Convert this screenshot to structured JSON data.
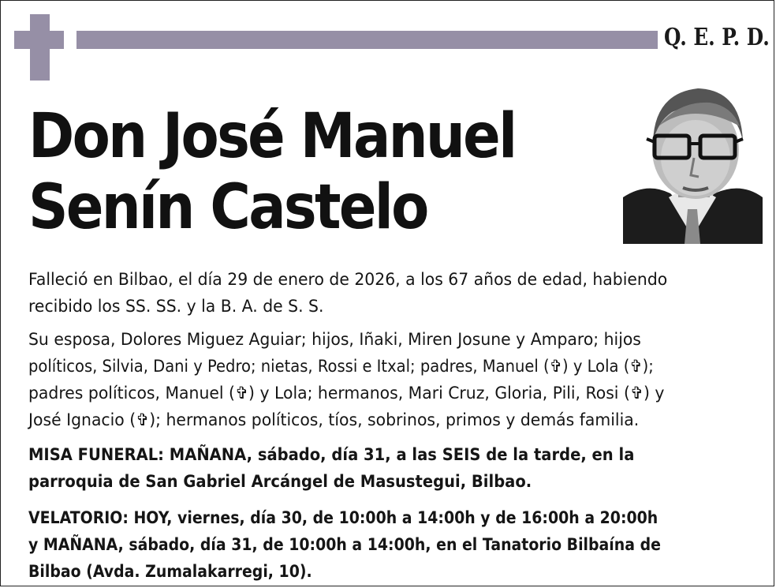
{
  "header": {
    "qepd": "Q. E. P. D."
  },
  "deceased": {
    "name_line1": "Don José Manuel",
    "name_line2": "Senín Castelo"
  },
  "body": {
    "p1_line1": "Falleció en Bilbao, el día 29 de enero de 2026, a los 67 años de edad, habiendo",
    "p1_line2": "recibido los SS. SS. y la B. A. de S. S.",
    "p2_line1": "Su esposa, Dolores Miguez Aguiar; hijos, Iñaki, Miren Josune y Amparo; hijos",
    "p2_line2": "políticos, Silvia, Dani y Pedro; nietas, Rossi e Itxal; padres, Manuel (✞) y Lola (✞);",
    "p2_line3": "padres políticos, Manuel (✞) y Lola; hermanos, Mari Cruz, Gloria, Pili, Rosi (✞) y",
    "p2_line4": "José Ignacio (✞); hermanos políticos, tíos, sobrinos, primos y demás familia.",
    "p3_line1": "MISA FUNERAL: MAÑANA, sábado, día 31, a las SEIS de la tarde, en la",
    "p3_line2": "parroquia de San Gabriel Arcángel de Masustegui, Bilbao.",
    "p4_line1": "VELATORIO: HOY, viernes, día 30, de 10:00h a 14:00h y de 16:00h a 20:00h",
    "p4_line2": "y MAÑANA, sábado, día 31, de 10:00h a 14:00h, en el Tanatorio Bilbaína de",
    "p4_line3": "Bilbao (Avda. Zumalakarregi, 10)."
  },
  "colors": {
    "accent": "#968fa6",
    "text": "#111111"
  }
}
